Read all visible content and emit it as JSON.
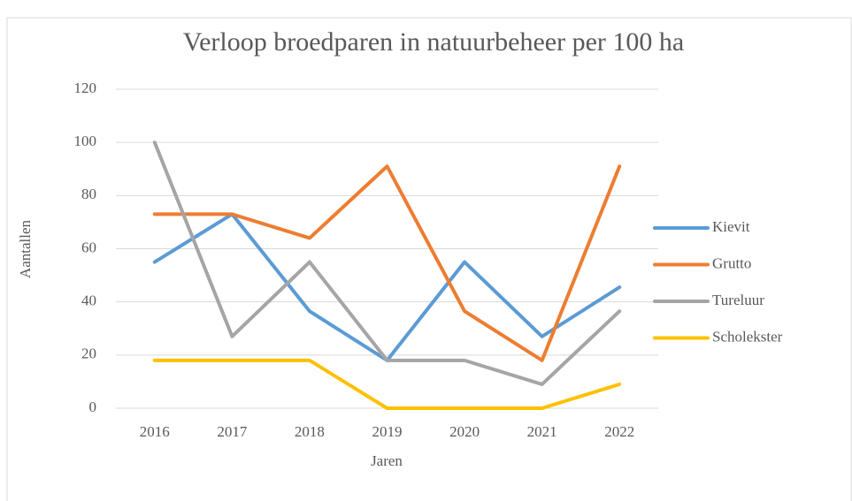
{
  "chart_data": {
    "type": "line",
    "title": "Verloop broedparen in natuurbeheer per 100  ha",
    "x_label": "Jaren",
    "y_label": "Aantallen",
    "categories": [
      "2016",
      "2017",
      "2018",
      "2019",
      "2020",
      "2021",
      "2022"
    ],
    "series": [
      {
        "name": "Kievit",
        "color": "#5b9bd5",
        "values": [
          55,
          73,
          36.5,
          18,
          55,
          27,
          45.5
        ]
      },
      {
        "name": "Grutto",
        "color": "#ed7d31",
        "values": [
          73,
          73,
          64,
          91,
          36.5,
          18,
          91
        ]
      },
      {
        "name": "Tureluur",
        "color": "#a5a5a5",
        "values": [
          100,
          27,
          55,
          18,
          18,
          9,
          36.5
        ]
      },
      {
        "name": "Scholekster",
        "color": "#ffc000",
        "values": [
          18,
          18,
          18,
          0,
          0,
          0,
          9
        ]
      }
    ],
    "ylim": [
      0,
      120
    ],
    "yticks": [
      0,
      20,
      40,
      60,
      80,
      100,
      120
    ],
    "grid": true,
    "legend": "right"
  }
}
